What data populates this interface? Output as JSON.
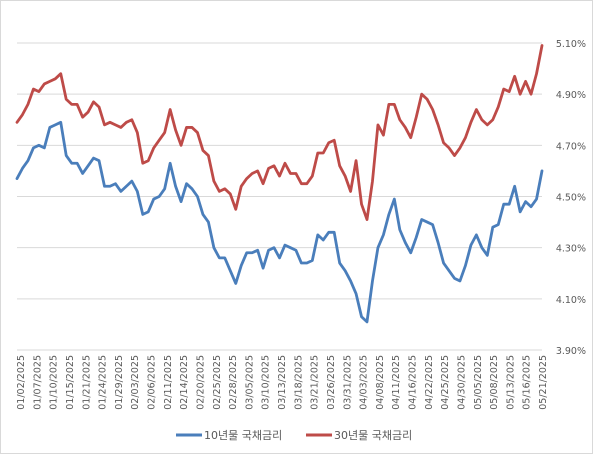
{
  "chart_data": {
    "type": "line",
    "x_tick_labels": [
      "01/02/2025",
      "01/07/2025",
      "01/10/2025",
      "01/15/2025",
      "01/21/2025",
      "01/24/2025",
      "01/29/2025",
      "02/03/2025",
      "02/06/2025",
      "02/11/2025",
      "02/14/2025",
      "02/20/2025",
      "02/25/2025",
      "02/28/2025",
      "03/05/2025",
      "03/10/2025",
      "03/13/2025",
      "03/18/2025",
      "03/21/2025",
      "03/26/2025",
      "03/31/2025",
      "04/03/2025",
      "04/08/2025",
      "04/11/2025",
      "04/16/2025",
      "04/22/2025",
      "04/25/2025",
      "04/30/2025",
      "05/05/2025",
      "05/08/2025",
      "05/13/2025",
      "05/16/2025",
      "05/21/2025"
    ],
    "y_tick_labels": [
      "3.90%",
      "4.10%",
      "4.30%",
      "4.50%",
      "4.70%",
      "4.90%",
      "5.10%"
    ],
    "y_ticks": [
      3.9,
      4.1,
      4.3,
      4.5,
      4.7,
      4.9,
      5.1
    ],
    "ylim": [
      3.9,
      5.1
    ],
    "grid": true,
    "legend_position": "bottom",
    "series": [
      {
        "name": "10년물 국채금리",
        "color": "#4a7ebb",
        "values": [
          4.57,
          4.61,
          4.64,
          4.69,
          4.7,
          4.69,
          4.77,
          4.78,
          4.79,
          4.66,
          4.63,
          4.63,
          4.59,
          4.62,
          4.65,
          4.64,
          4.54,
          4.54,
          4.55,
          4.52,
          4.54,
          4.56,
          4.52,
          4.43,
          4.44,
          4.49,
          4.5,
          4.53,
          4.63,
          4.54,
          4.48,
          4.55,
          4.53,
          4.5,
          4.43,
          4.4,
          4.3,
          4.26,
          4.26,
          4.21,
          4.16,
          4.23,
          4.28,
          4.28,
          4.29,
          4.22,
          4.29,
          4.3,
          4.26,
          4.31,
          4.3,
          4.29,
          4.24,
          4.24,
          4.25,
          4.35,
          4.33,
          4.36,
          4.36,
          4.24,
          4.21,
          4.17,
          4.12,
          4.03,
          4.01,
          4.17,
          4.3,
          4.35,
          4.43,
          4.49,
          4.37,
          4.32,
          4.28,
          4.34,
          4.41,
          4.4,
          4.39,
          4.32,
          4.24,
          4.21,
          4.18,
          4.17,
          4.23,
          4.31,
          4.35,
          4.3,
          4.27,
          4.38,
          4.39,
          4.47,
          4.47,
          4.54,
          4.44,
          4.48,
          4.46,
          4.49,
          4.6
        ]
      },
      {
        "name": "30년물 국채금리",
        "color": "#be4b48",
        "values": [
          4.79,
          4.82,
          4.86,
          4.92,
          4.91,
          4.94,
          4.95,
          4.96,
          4.98,
          4.88,
          4.86,
          4.86,
          4.81,
          4.83,
          4.87,
          4.85,
          4.78,
          4.79,
          4.78,
          4.77,
          4.79,
          4.8,
          4.75,
          4.63,
          4.64,
          4.69,
          4.72,
          4.75,
          4.84,
          4.76,
          4.7,
          4.77,
          4.77,
          4.75,
          4.68,
          4.66,
          4.56,
          4.52,
          4.53,
          4.51,
          4.45,
          4.54,
          4.57,
          4.59,
          4.6,
          4.55,
          4.61,
          4.62,
          4.58,
          4.63,
          4.59,
          4.59,
          4.55,
          4.55,
          4.58,
          4.67,
          4.67,
          4.71,
          4.72,
          4.62,
          4.58,
          4.52,
          4.64,
          4.47,
          4.41,
          4.56,
          4.78,
          4.74,
          4.86,
          4.86,
          4.8,
          4.77,
          4.73,
          4.81,
          4.9,
          4.88,
          4.84,
          4.78,
          4.71,
          4.69,
          4.66,
          4.69,
          4.73,
          4.79,
          4.84,
          4.8,
          4.78,
          4.8,
          4.85,
          4.92,
          4.91,
          4.97,
          4.9,
          4.95,
          4.9,
          4.98,
          5.09
        ]
      }
    ]
  }
}
